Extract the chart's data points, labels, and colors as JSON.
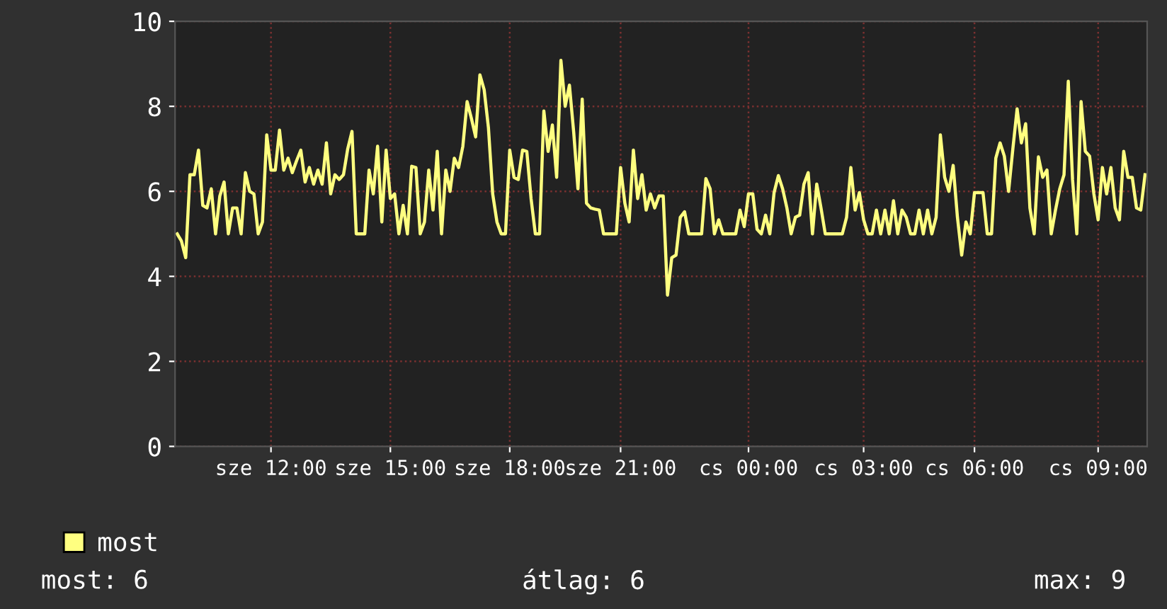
{
  "chart_data": {
    "type": "line",
    "categories": [
      null,
      null,
      null,
      null,
      null,
      null,
      null,
      null,
      null,
      null,
      null,
      null,
      null,
      null,
      null,
      null,
      null,
      null,
      null,
      null,
      null,
      null,
      "sze 12:00",
      null,
      null,
      null,
      null,
      null,
      null,
      null,
      null,
      null,
      null,
      null,
      null,
      null,
      null,
      null,
      null,
      null,
      null,
      null,
      null,
      null,
      null,
      null,
      null,
      null,
      null,
      null,
      "sze 15:00",
      null,
      null,
      null,
      null,
      null,
      null,
      null,
      null,
      null,
      null,
      null,
      null,
      null,
      null,
      null,
      null,
      null,
      null,
      null,
      null,
      null,
      null,
      null,
      null,
      null,
      null,
      null,
      "sze 18:00",
      null,
      null,
      null,
      null,
      null,
      null,
      null,
      null,
      null,
      null,
      null,
      null,
      null,
      null,
      null,
      null,
      null,
      null,
      null,
      null,
      null,
      null,
      null,
      null,
      null,
      "sze 21:00",
      null,
      null,
      null,
      null,
      null,
      null,
      null,
      null,
      null,
      null,
      null,
      null,
      null,
      null,
      null,
      null,
      null,
      null,
      null,
      null,
      null,
      null,
      null,
      null,
      null,
      null,
      null,
      null,
      null,
      "cs 00:00",
      null,
      null,
      null,
      null,
      null,
      null,
      null,
      null,
      null,
      null,
      null,
      null,
      null,
      null,
      null,
      null,
      null,
      null,
      null,
      null,
      null,
      null,
      null,
      null,
      null,
      null,
      "cs 03:00",
      null,
      null,
      null,
      null,
      null,
      null,
      null,
      null,
      null,
      null,
      null,
      null,
      null,
      null,
      null,
      null,
      null,
      null,
      null,
      null,
      null,
      null,
      null,
      null,
      null,
      "cs 06:00",
      null,
      null,
      null,
      null,
      null,
      null,
      null,
      null,
      null,
      null,
      null,
      null,
      null,
      null,
      null,
      null,
      null,
      null,
      null,
      null,
      null,
      null,
      null,
      null,
      null,
      null,
      null,
      null,
      "cs 09:00",
      null,
      null,
      null,
      null,
      null,
      null,
      null,
      null,
      null,
      null,
      null
    ],
    "series": [
      {
        "name": "most",
        "color": "#ffff80",
        "values": [
          5.0,
          4.83,
          4.44,
          6.39,
          6.39,
          6.97,
          5.67,
          5.61,
          6.06,
          5.0,
          5.89,
          6.22,
          5.0,
          5.61,
          5.61,
          5.0,
          6.44,
          6.0,
          5.94,
          5.0,
          5.28,
          7.33,
          6.5,
          6.5,
          7.44,
          6.5,
          6.78,
          6.44,
          6.72,
          6.97,
          6.22,
          6.56,
          6.17,
          6.5,
          6.17,
          7.14,
          5.94,
          6.39,
          6.28,
          6.39,
          7.0,
          7.41,
          5.0,
          5.0,
          5.0,
          6.5,
          5.94,
          7.06,
          5.28,
          6.97,
          5.83,
          5.94,
          5.0,
          5.67,
          5.0,
          6.59,
          6.56,
          5.0,
          5.28,
          6.5,
          5.56,
          6.94,
          5.0,
          6.5,
          6.0,
          6.78,
          6.56,
          7.06,
          8.11,
          7.72,
          7.28,
          8.74,
          8.39,
          7.5,
          5.94,
          5.28,
          5.0,
          5.0,
          6.97,
          6.33,
          6.28,
          6.97,
          6.94,
          5.83,
          5.0,
          5.0,
          7.89,
          6.94,
          7.56,
          6.33,
          9.08,
          8.0,
          8.5,
          7.39,
          6.06,
          8.17,
          5.72,
          5.61,
          5.58,
          5.56,
          5.0,
          5.0,
          5.0,
          5.0,
          6.56,
          5.72,
          5.28,
          6.97,
          5.83,
          6.39,
          5.56,
          5.94,
          5.61,
          5.89,
          5.89,
          3.56,
          4.44,
          4.5,
          5.39,
          5.52,
          5.0,
          5.0,
          5.0,
          5.0,
          6.3,
          6.06,
          5.0,
          5.33,
          5.0,
          5.0,
          5.0,
          5.0,
          5.56,
          5.17,
          5.94,
          5.94,
          5.11,
          5.0,
          5.44,
          5.0,
          5.97,
          6.37,
          6.06,
          5.61,
          5.0,
          5.39,
          5.44,
          6.17,
          6.44,
          5.0,
          6.17,
          5.61,
          5.0,
          5.0,
          5.0,
          5.0,
          5.0,
          5.39,
          6.56,
          5.56,
          5.97,
          5.33,
          5.0,
          5.0,
          5.56,
          5.0,
          5.56,
          5.0,
          5.78,
          5.0,
          5.56,
          5.39,
          5.0,
          5.0,
          5.56,
          5.0,
          5.56,
          5.0,
          5.39,
          7.33,
          6.33,
          6.0,
          6.61,
          5.39,
          4.5,
          5.28,
          5.0,
          5.97,
          5.97,
          5.97,
          5.0,
          5.0,
          6.78,
          7.14,
          6.83,
          6.0,
          7.0,
          7.94,
          7.14,
          7.59,
          5.61,
          5.0,
          6.81,
          6.33,
          6.5,
          5.0,
          5.56,
          6.06,
          6.39,
          8.59,
          6.28,
          5.0,
          8.11,
          6.94,
          6.83,
          5.94,
          5.33,
          6.56,
          5.94,
          6.56,
          5.61,
          5.33,
          6.94,
          6.33,
          6.33,
          5.61,
          5.56,
          6.39
        ]
      }
    ],
    "ylim": [
      0,
      10
    ],
    "yticks": [
      0,
      2,
      4,
      6,
      8,
      10
    ],
    "grid": true,
    "legend": "bottom left",
    "marker": "none",
    "line_style": "solid",
    "annotations": [
      "most: 6",
      "átlag: 6",
      "max: 9"
    ]
  }
}
